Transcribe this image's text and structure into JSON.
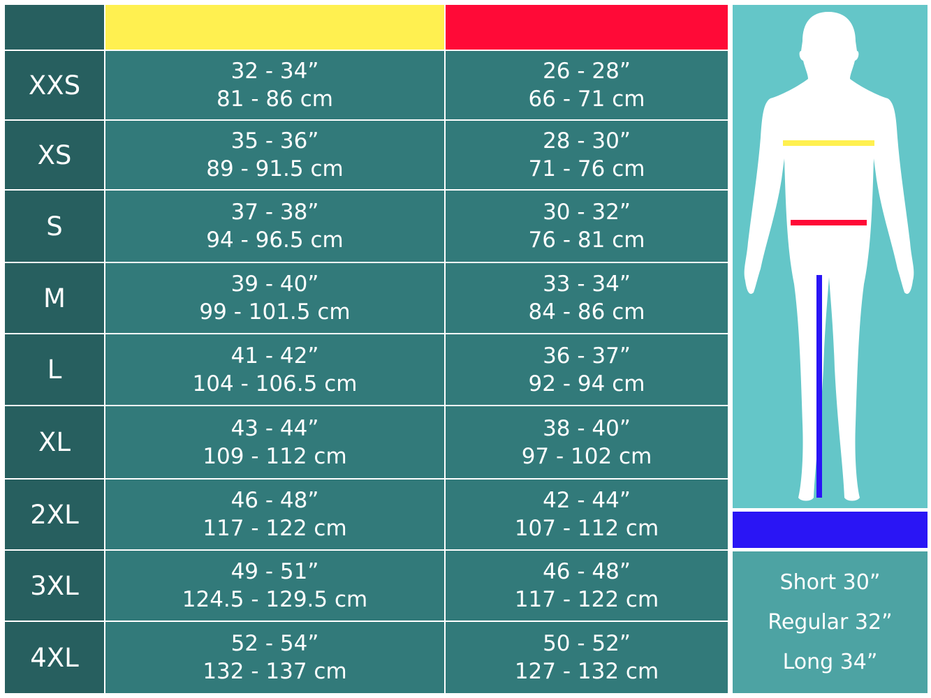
{
  "colors": {
    "chest": "#fff050",
    "waist": "#ff0a37",
    "inseam": "#2a15f5",
    "size_cell": "#275f5f",
    "value_cell": "#327a7a",
    "figure_bg": "#64c6c8"
  },
  "rows": [
    {
      "size": "XXS",
      "chest_in": "32 - 34”",
      "chest_cm": "81 - 86 cm",
      "waist_in": "26 - 28”",
      "waist_cm": "66 - 71 cm"
    },
    {
      "size": "XS",
      "chest_in": "35 - 36”",
      "chest_cm": "89 - 91.5 cm",
      "waist_in": "28 - 30”",
      "waist_cm": "71 - 76 cm"
    },
    {
      "size": "S",
      "chest_in": "37 - 38”",
      "chest_cm": "94 - 96.5 cm",
      "waist_in": "30 - 32”",
      "waist_cm": "76 - 81 cm"
    },
    {
      "size": "M",
      "chest_in": "39 - 40”",
      "chest_cm": "99 - 101.5 cm",
      "waist_in": "33 - 34”",
      "waist_cm": "84 - 86 cm"
    },
    {
      "size": "L",
      "chest_in": "41 - 42”",
      "chest_cm": "104 - 106.5 cm",
      "waist_in": "36 - 37”",
      "waist_cm": "92 - 94 cm"
    },
    {
      "size": "XL",
      "chest_in": "43 - 44”",
      "chest_cm": "109 - 112 cm",
      "waist_in": "38 - 40”",
      "waist_cm": "97 - 102 cm"
    },
    {
      "size": "2XL",
      "chest_in": "46 - 48”",
      "chest_cm": "117 - 122 cm",
      "waist_in": "42 - 44”",
      "waist_cm": "107 - 112 cm"
    },
    {
      "size": "3XL",
      "chest_in": "49 - 51”",
      "chest_cm": "124.5 - 129.5 cm",
      "waist_in": "46 - 48”",
      "waist_cm": "117 - 122 cm"
    },
    {
      "size": "4XL",
      "chest_in": "52 - 54”",
      "chest_cm": "132 - 137 cm",
      "waist_in": "50 - 52”",
      "waist_cm": "127 - 132 cm"
    }
  ],
  "inseam_lengths": [
    "Short 30”",
    "Regular 32”",
    "Long 34”"
  ]
}
